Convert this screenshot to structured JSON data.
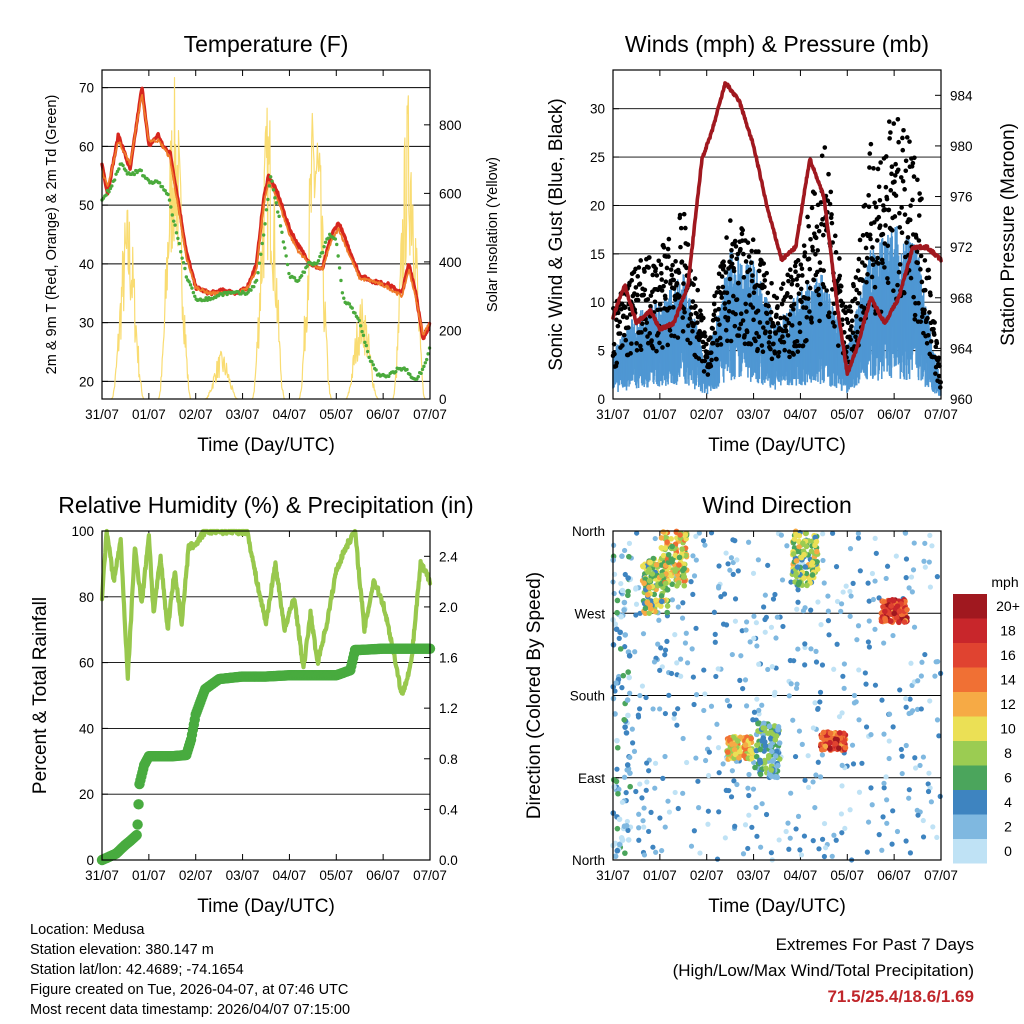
{
  "chart_data": [
    {
      "type": "line",
      "title": "Temperature (F)",
      "xlabel": "Time (Day/UTC)",
      "ylabel": "2m & 9m T (Red, Orange) & 2m Td (Green)",
      "y2label": "Solar Insolation (Yellow)",
      "x_ticks": [
        "31/07",
        "01/07",
        "02/07",
        "03/07",
        "04/07",
        "05/07",
        "06/07",
        "07/07"
      ],
      "x_range": [
        0,
        7
      ],
      "ylim": [
        17,
        73
      ],
      "y_ticks": [
        20,
        30,
        40,
        50,
        60,
        70
      ],
      "y2lim": [
        0,
        960
      ],
      "y2_ticks": [
        0,
        200,
        400,
        600,
        800
      ],
      "series": [
        {
          "name": "2m T",
          "color": "#d7261e",
          "x": [
            0,
            0.12,
            0.35,
            0.6,
            0.85,
            0.9,
            1.0,
            1.2,
            1.3,
            1.45,
            1.6,
            1.8,
            2.0,
            2.3,
            2.6,
            2.9,
            3.1,
            3.3,
            3.45,
            3.55,
            3.75,
            4.0,
            4.2,
            4.45,
            4.7,
            4.9,
            5.05,
            5.2,
            5.5,
            5.8,
            6.1,
            6.4,
            6.55,
            6.7,
            6.85,
            7.0
          ],
          "values": [
            57,
            52,
            62,
            56,
            70,
            67,
            60,
            62,
            60,
            59,
            52,
            42,
            36,
            35,
            35.5,
            35,
            36,
            40,
            51,
            55,
            52,
            46,
            43,
            40,
            39,
            45,
            47,
            44,
            38,
            37,
            36.5,
            35,
            40,
            35,
            27,
            30
          ]
        },
        {
          "name": "9m T",
          "color": "#f07b2a",
          "x": [
            0,
            0.12,
            0.35,
            0.6,
            0.85,
            0.9,
            1.0,
            1.2,
            1.3,
            1.45,
            1.6,
            1.8,
            2.0,
            2.3,
            2.6,
            2.9,
            3.1,
            3.3,
            3.45,
            3.55,
            3.75,
            4.0,
            4.2,
            4.45,
            4.7,
            4.9,
            5.05,
            5.2,
            5.5,
            5.8,
            6.1,
            6.4,
            6.55,
            6.7,
            6.85,
            7.0
          ],
          "values": [
            56,
            53,
            61,
            57,
            69,
            66,
            61,
            61,
            60,
            58,
            51,
            41,
            36,
            35,
            35,
            35,
            36,
            39,
            50,
            54,
            51,
            45,
            42,
            40,
            39,
            44,
            46,
            43,
            37.5,
            37,
            36,
            34.5,
            39,
            34,
            28,
            30
          ]
        },
        {
          "name": "2m Td",
          "color": "#4aaa3c",
          "x": [
            0,
            0.2,
            0.4,
            0.6,
            0.8,
            1.0,
            1.2,
            1.4,
            1.6,
            1.8,
            2.0,
            2.3,
            2.6,
            2.9,
            3.1,
            3.3,
            3.45,
            3.6,
            3.8,
            4.0,
            4.2,
            4.4,
            4.6,
            4.85,
            5.0,
            5.15,
            5.3,
            5.5,
            5.7,
            5.9,
            6.1,
            6.3,
            6.5,
            6.7,
            6.9,
            7.0
          ],
          "values": [
            51,
            53,
            57,
            55,
            56,
            54,
            54,
            52,
            45,
            38,
            34,
            34,
            35,
            35,
            35,
            37,
            45,
            55,
            47,
            38,
            37,
            40,
            40,
            45,
            44,
            34,
            33,
            30,
            24,
            21,
            21,
            22,
            22,
            20,
            23,
            26
          ]
        }
      ],
      "insolation": {
        "name": "Solar Insolation",
        "color": "#f9dc72",
        "peaks": [
          {
            "day": 0,
            "value": 580
          },
          {
            "day": 1,
            "value": 940
          },
          {
            "day": 2,
            "value": 140
          },
          {
            "day": 3,
            "value": 880
          },
          {
            "day": 4,
            "value": 920
          },
          {
            "day": 5,
            "value": 300
          },
          {
            "day": 6,
            "value": 910
          }
        ]
      }
    },
    {
      "type": "scatter",
      "title": "Winds (mph) & Pressure (mb)",
      "xlabel": "Time (Day/UTC)",
      "ylabel": "Sonic Wind & Gust (Blue, Black)",
      "y2label": "Station Pressure (Maroon)",
      "x_ticks": [
        "31/07",
        "01/07",
        "02/07",
        "03/07",
        "04/07",
        "05/07",
        "06/07",
        "07/07"
      ],
      "x_range": [
        0,
        7
      ],
      "ylim": [
        0,
        34
      ],
      "y_ticks": [
        0,
        5,
        10,
        15,
        20,
        25,
        30
      ],
      "y2lim": [
        960,
        986
      ],
      "y2_ticks": [
        960,
        964,
        968,
        972,
        976,
        980,
        984
      ],
      "wind_envelope": {
        "x": [
          0,
          0.5,
          1.0,
          1.5,
          2.0,
          2.5,
          3.0,
          3.5,
          4.0,
          4.5,
          5.0,
          5.5,
          6.0,
          6.5,
          7.0
        ],
        "values": [
          4,
          7,
          8,
          10,
          3,
          12,
          11,
          6,
          9,
          10,
          4,
          12,
          14,
          12,
          1
        ]
      },
      "gust_envelope": {
        "x": [
          0,
          0.5,
          1.0,
          1.5,
          2.0,
          2.5,
          3.0,
          3.5,
          4.0,
          4.5,
          5.0,
          5.5,
          6.0,
          6.5,
          7.0
        ],
        "values": [
          9,
          13,
          14,
          18,
          6,
          17,
          15,
          10,
          14,
          25,
          8,
          24,
          27,
          23,
          2
        ]
      },
      "pressure": {
        "color": "#a0181f",
        "x": [
          0,
          0.25,
          0.5,
          0.8,
          1.0,
          1.3,
          1.6,
          1.9,
          2.1,
          2.4,
          2.7,
          3.0,
          3.3,
          3.6,
          3.9,
          4.2,
          4.5,
          4.8,
          5.0,
          5.2,
          5.5,
          5.8,
          6.1,
          6.4,
          6.7,
          7.0
        ],
        "values": [
          966.5,
          969,
          966,
          967,
          965.5,
          966,
          969,
          979,
          981,
          985,
          983.5,
          980,
          975,
          971,
          972,
          979,
          976,
          967,
          962,
          964,
          968,
          966,
          968,
          972,
          972,
          971
        ]
      }
    },
    {
      "type": "line",
      "title": "Relative Humidity (%) & Precipitation (in)",
      "xlabel": "Time (Day/UTC)",
      "ylabel": "Percent & Total Rainfall",
      "x_ticks": [
        "31/07",
        "01/07",
        "02/07",
        "03/07",
        "04/07",
        "05/07",
        "06/07",
        "07/07"
      ],
      "x_range": [
        0,
        7
      ],
      "ylim": [
        0,
        100
      ],
      "y_ticks": [
        0,
        20,
        40,
        60,
        80,
        100
      ],
      "y2lim": [
        0,
        2.6
      ],
      "y2_ticks": [
        0.0,
        0.4,
        0.8,
        1.2,
        1.6,
        2.0,
        2.4
      ],
      "series": [
        {
          "name": "Relative Humidity",
          "color": "#98c84d",
          "x": [
            0,
            0.1,
            0.25,
            0.4,
            0.55,
            0.7,
            0.85,
            1.0,
            1.1,
            1.25,
            1.4,
            1.55,
            1.7,
            1.85,
            2.0,
            2.2,
            2.5,
            2.8,
            3.1,
            3.3,
            3.5,
            3.7,
            3.9,
            4.1,
            4.3,
            4.45,
            4.6,
            4.8,
            5.0,
            5.2,
            5.4,
            5.6,
            5.8,
            6.0,
            6.2,
            6.4,
            6.6,
            6.8,
            7.0
          ],
          "values": [
            80,
            100,
            85,
            97,
            55,
            95,
            78,
            99,
            75,
            92,
            70,
            88,
            72,
            95,
            96,
            100,
            100,
            100,
            100,
            85,
            72,
            90,
            70,
            80,
            58,
            75,
            60,
            72,
            88,
            95,
            100,
            70,
            85,
            78,
            65,
            50,
            60,
            90,
            85
          ]
        },
        {
          "name": "Total Precipitation",
          "color": "#48ab3f",
          "x": [
            0,
            0.3,
            0.5,
            0.6,
            0.75,
            0.8,
            0.9,
            1.0,
            1.2,
            1.5,
            1.8,
            1.9,
            2.0,
            2.2,
            2.5,
            3.0,
            3.5,
            4.0,
            4.5,
            5.0,
            5.3,
            5.4,
            5.5,
            6.0,
            6.5,
            7.0
          ],
          "values_in": [
            0.0,
            0.05,
            0.12,
            0.15,
            0.2,
            0.6,
            0.75,
            0.82,
            0.82,
            0.82,
            0.83,
            0.95,
            1.15,
            1.35,
            1.43,
            1.45,
            1.45,
            1.46,
            1.46,
            1.46,
            1.5,
            1.66,
            1.66,
            1.67,
            1.67,
            1.67
          ]
        }
      ]
    },
    {
      "type": "scatter",
      "title": "Wind Direction",
      "xlabel": "Time (Day/UTC)",
      "ylabel": "Direction (Colored By Speed)",
      "x_ticks": [
        "31/07",
        "01/07",
        "02/07",
        "03/07",
        "04/07",
        "05/07",
        "06/07",
        "07/07"
      ],
      "x_range": [
        0,
        7
      ],
      "ylim": [
        0,
        360
      ],
      "y_tick_labels": [
        "North",
        "East",
        "South",
        "West",
        "North"
      ],
      "y_tick_values": [
        0,
        90,
        180,
        270,
        360
      ],
      "colorbar": {
        "units": "mph",
        "labels": [
          "20+",
          "18",
          "16",
          "14",
          "12",
          "10",
          "8",
          "6",
          "4",
          "2",
          "0"
        ],
        "colors": [
          "#a0181f",
          "#c8262b",
          "#e04330",
          "#f07034",
          "#f6aa45",
          "#ebe055",
          "#9bcc52",
          "#4ba55c",
          "#3e84c0",
          "#7fb8e0",
          "#bfe2f5"
        ]
      },
      "clusters": [
        {
          "day": 0.1,
          "dir_from": 0,
          "dir_to": 360,
          "speed": 3
        },
        {
          "day": 0.9,
          "dir_from": 270,
          "dir_to": 330,
          "speed": 8
        },
        {
          "day": 1.3,
          "dir_from": 300,
          "dir_to": 360,
          "speed": 10
        },
        {
          "day": 2.7,
          "dir_from": 110,
          "dir_to": 135,
          "speed": 11
        },
        {
          "day": 3.3,
          "dir_from": 90,
          "dir_to": 150,
          "speed": 5
        },
        {
          "day": 4.1,
          "dir_from": 300,
          "dir_to": 360,
          "speed": 8
        },
        {
          "day": 4.7,
          "dir_from": 120,
          "dir_to": 140,
          "speed": 16
        },
        {
          "day": 6.0,
          "dir_from": 260,
          "dir_to": 285,
          "speed": 16
        }
      ]
    }
  ],
  "info": {
    "location": "Location: Medusa",
    "elevation": "Station elevation: 380.147 m",
    "latlon": "Station lat/lon: 42.4689; -74.1654",
    "created": "Figure created on Tue, 2026-04-07, at 07:46 UTC",
    "recent": "Most recent data timestamp: 2026/04/07 07:15:00"
  },
  "extremes": {
    "line1": "Extremes For Past 7 Days",
    "line2": "(High/Low/Max Wind/Total Precipitation)",
    "values": "71.5/25.4/18.6/1.69"
  }
}
